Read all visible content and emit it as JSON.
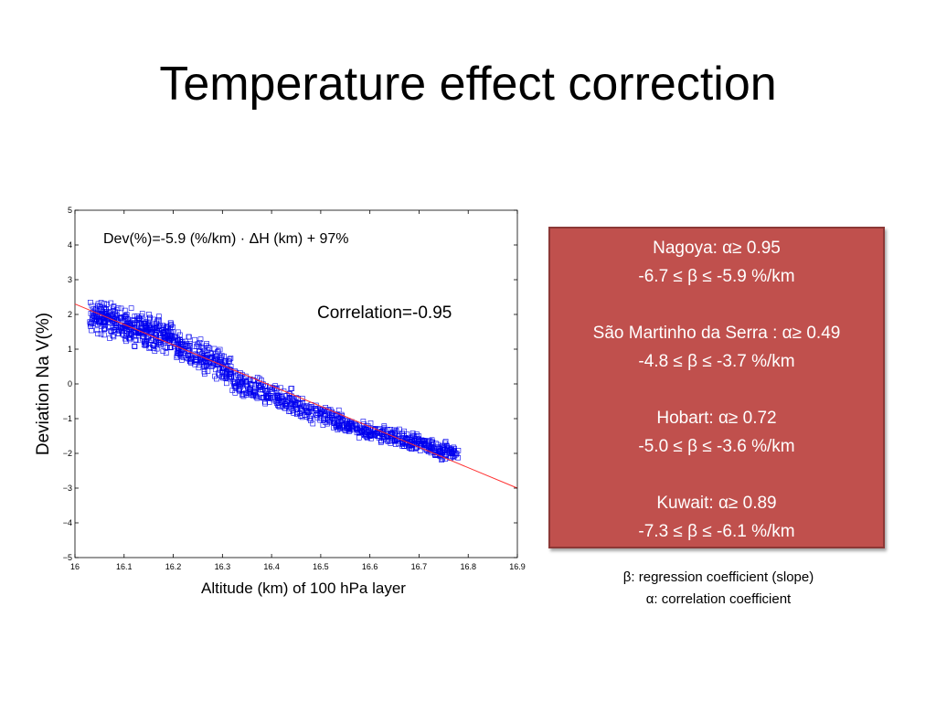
{
  "title": "Temperature effect correction",
  "chart_data": {
    "type": "scatter",
    "xlabel": "Altitude (km) of 100 hPa layer",
    "ylabel": "Deviation Na V(%)",
    "xlim": [
      16,
      16.9
    ],
    "ylim": [
      -5,
      5
    ],
    "xticks": [
      "16",
      "16.1",
      "16.2",
      "16.3",
      "16.4",
      "16.5",
      "16.6",
      "16.7",
      "16.8",
      "16.9"
    ],
    "yticks": [
      "5",
      "4",
      "3",
      "2",
      "1",
      "0",
      "−1",
      "−2",
      "−3",
      "−4",
      "−5"
    ],
    "equation": "Dev(%)=-5.9 (%/km) · ΔH (km) + 97%",
    "correlation": "Correlation=-0.95",
    "marker_color": "#0000ee",
    "fit_color": "#ff3030",
    "fit_line": {
      "slope": -5.9,
      "x": [
        16,
        16.9
      ],
      "y": [
        2.3,
        -3.0
      ]
    },
    "clusters": [
      {
        "x_range": [
          16.03,
          16.2
        ],
        "y_center_at_start": 2.0,
        "slope": -4.0,
        "spread": 0.65,
        "count": 420
      },
      {
        "x_range": [
          16.2,
          16.32
        ],
        "y_center_at_start": 1.1,
        "slope": -6.0,
        "spread": 0.6,
        "count": 230
      },
      {
        "x_range": [
          16.32,
          16.55
        ],
        "y_center_at_start": 0.1,
        "slope": -5.5,
        "spread": 0.5,
        "count": 330
      },
      {
        "x_range": [
          16.55,
          16.78
        ],
        "y_center_at_start": -1.2,
        "slope": -3.5,
        "spread": 0.35,
        "count": 360
      }
    ]
  },
  "info_box": {
    "sites": [
      {
        "name_line": "Nagoya: α≥ 0.95",
        "beta_line": "-6.7 ≤ β ≤ -5.9 %/km"
      },
      {
        "name_line": "São Martinho da Serra : α≥ 0.49",
        "beta_line": "-4.8 ≤ β ≤ -3.7 %/km"
      },
      {
        "name_line": "Hobart: α≥ 0.72",
        "beta_line": "-5.0 ≤ β ≤ -3.6 %/km"
      },
      {
        "name_line": "Kuwait: α≥ 0.89",
        "beta_line": "-7.3 ≤ β ≤ -6.1 %/km"
      }
    ],
    "background": "#c0504d"
  },
  "notes": {
    "beta": "β: regression coefficient (slope)",
    "alpha": "α: correlation coefficient"
  }
}
